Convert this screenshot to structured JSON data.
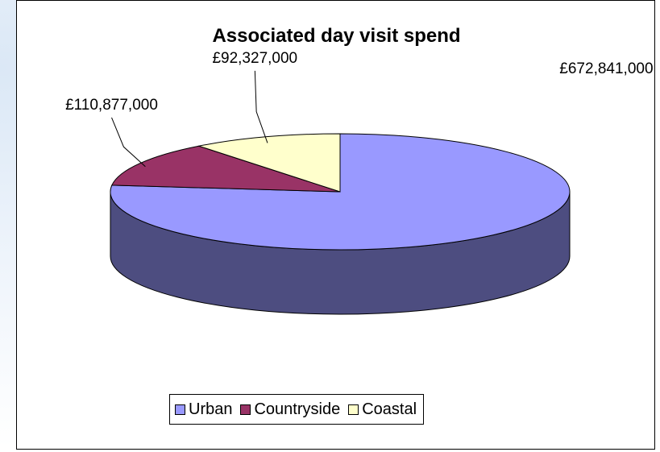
{
  "chart_data": {
    "type": "pie",
    "title": "Associated day visit spend",
    "categories": [
      "Urban",
      "Countryside",
      "Coastal"
    ],
    "values": [
      672841000,
      110877000,
      92327000
    ],
    "data_labels": [
      "£672,841,000",
      "£110,877,000",
      "£92,327,000"
    ],
    "colors": [
      "#9999ff",
      "#993366",
      "#ffffcc"
    ],
    "side_colors": [
      "#4d4d80",
      "#4d1a33",
      "#808066"
    ],
    "legend_position": "bottom",
    "three_d": true
  }
}
